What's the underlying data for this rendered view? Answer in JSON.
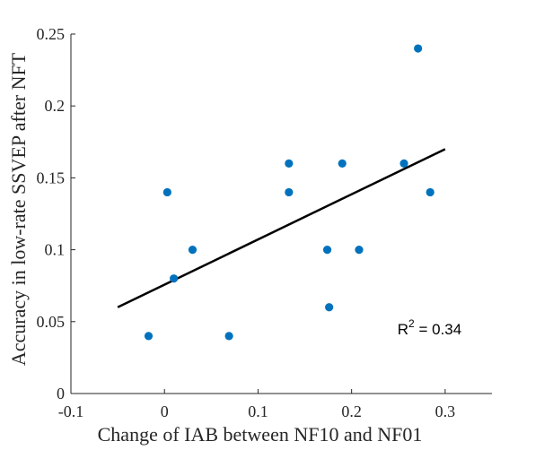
{
  "chart_data": {
    "type": "scatter",
    "title": "",
    "xlabel": "Change of IAB between NF10 and NF01",
    "ylabel": "Accuracy in low-rate SSVEP after NFT",
    "xlim": [
      -0.1,
      0.35
    ],
    "ylim": [
      0,
      0.25
    ],
    "xticks": [
      -0.1,
      0,
      0.1,
      0.2,
      0.3
    ],
    "xtick_labels": [
      "-0.1",
      "0",
      "0.1",
      "0.2",
      "0.3"
    ],
    "yticks": [
      0,
      0.05,
      0.1,
      0.15,
      0.2,
      0.25
    ],
    "ytick_labels": [
      "0",
      "0.05",
      "0.1",
      "0.15",
      "0.2",
      "0.25"
    ],
    "grid": false,
    "marker_color": "#0072BD",
    "line_color": "#000000",
    "points": [
      {
        "x": -0.017,
        "y": 0.04
      },
      {
        "x": 0.003,
        "y": 0.14
      },
      {
        "x": 0.01,
        "y": 0.08
      },
      {
        "x": 0.03,
        "y": 0.1
      },
      {
        "x": 0.069,
        "y": 0.04
      },
      {
        "x": 0.133,
        "y": 0.16
      },
      {
        "x": 0.133,
        "y": 0.14
      },
      {
        "x": 0.174,
        "y": 0.1
      },
      {
        "x": 0.176,
        "y": 0.06
      },
      {
        "x": 0.19,
        "y": 0.16
      },
      {
        "x": 0.208,
        "y": 0.1
      },
      {
        "x": 0.256,
        "y": 0.16
      },
      {
        "x": 0.271,
        "y": 0.24
      },
      {
        "x": 0.284,
        "y": 0.14
      }
    ],
    "fit_line": {
      "x": [
        -0.05,
        0.3
      ],
      "y": [
        0.06,
        0.17
      ]
    },
    "annotation": {
      "base": "R",
      "sup": "2",
      "rest": " = 0.34",
      "x": 0.25,
      "y": 0.045
    }
  }
}
